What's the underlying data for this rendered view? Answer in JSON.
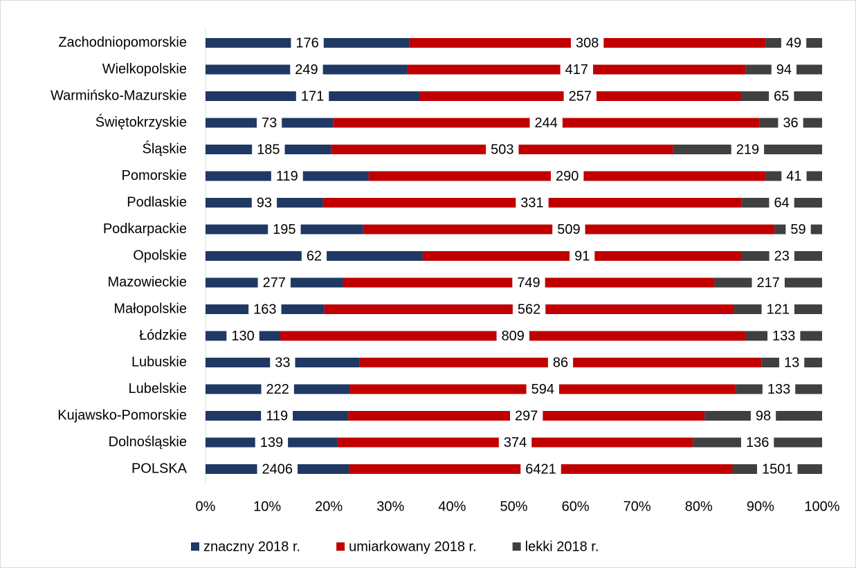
{
  "chart_data": {
    "type": "bar",
    "orientation": "horizontal",
    "stacking": "percent",
    "categories": [
      "Zachodniopomorskie",
      "Wielkopolskie",
      "Warmińsko-Mazurskie",
      "Świętokrzyskie",
      "Śląskie",
      "Pomorskie",
      "Podlaskie",
      "Podkarpackie",
      "Opolskie",
      "Mazowieckie",
      "Małopolskie",
      "Łódzkie",
      "Lubuskie",
      "Lubelskie",
      "Kujawsko-Pomorskie",
      "Dolnośląskie",
      "POLSKA"
    ],
    "series": [
      {
        "name": "znaczny 2018 r.",
        "color": "#203864",
        "values": [
          176,
          249,
          171,
          73,
          185,
          119,
          93,
          195,
          62,
          277,
          163,
          130,
          33,
          222,
          119,
          139,
          2406
        ]
      },
      {
        "name": "umiarkowany 2018 r.",
        "color": "#c00000",
        "values": [
          308,
          417,
          257,
          244,
          503,
          290,
          331,
          509,
          91,
          749,
          562,
          809,
          86,
          594,
          297,
          374,
          6421
        ]
      },
      {
        "name": "lekki 2018 r.",
        "color": "#404040",
        "values": [
          49,
          94,
          65,
          36,
          219,
          41,
          64,
          59,
          23,
          217,
          121,
          133,
          13,
          133,
          98,
          136,
          1501
        ]
      }
    ],
    "xlim": [
      0,
      100
    ],
    "xticks": [
      {
        "value": 0,
        "label": "0%"
      },
      {
        "value": 10,
        "label": "10%"
      },
      {
        "value": 20,
        "label": "20%"
      },
      {
        "value": 30,
        "label": "30%"
      },
      {
        "value": 40,
        "label": "40%"
      },
      {
        "value": 50,
        "label": "50%"
      },
      {
        "value": 60,
        "label": "60%"
      },
      {
        "value": 70,
        "label": "70%"
      },
      {
        "value": 80,
        "label": "80%"
      },
      {
        "value": 90,
        "label": "90%"
      },
      {
        "value": 100,
        "label": "100%"
      }
    ],
    "legend": "bottom"
  }
}
